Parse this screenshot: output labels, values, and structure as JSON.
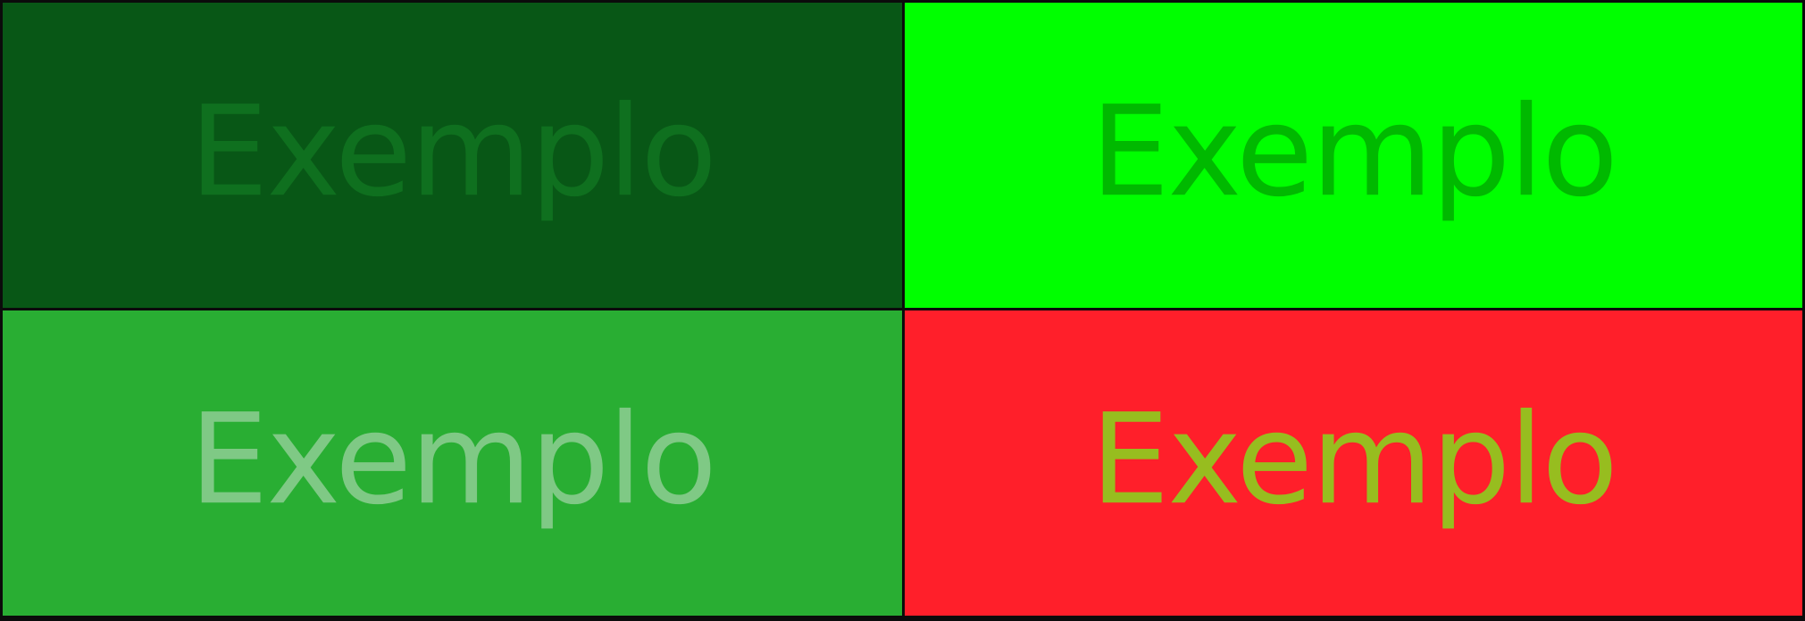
{
  "swatches": [
    {
      "text": "Exemplo",
      "background": "#085716",
      "text_color": "#0f701f"
    },
    {
      "text": "Exemplo",
      "background": "#00ff00",
      "text_color": "#00b900"
    },
    {
      "text": "Exemplo",
      "background": "#29ae33",
      "text_color": "#7fc985"
    },
    {
      "text": "Exemplo",
      "background": "#ff1f2a",
      "text_color": "#97bd1f"
    }
  ]
}
